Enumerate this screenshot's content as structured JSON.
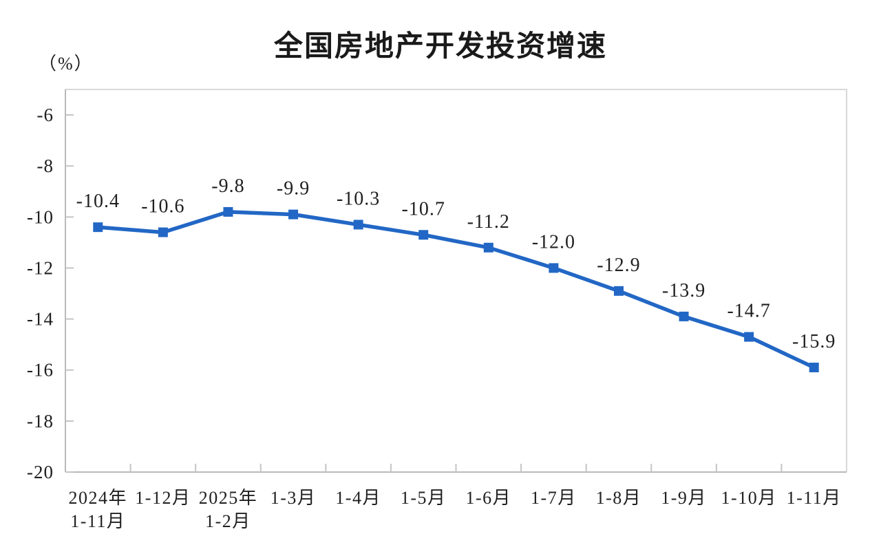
{
  "chart_data": {
    "type": "line",
    "title": "全国房地产开发投资增速",
    "unit_label": "（%）",
    "categories": [
      [
        "2024年",
        "1-11月"
      ],
      [
        "1-12月"
      ],
      [
        "2025年",
        "1-2月"
      ],
      [
        "1-3月"
      ],
      [
        "1-4月"
      ],
      [
        "1-5月"
      ],
      [
        "1-6月"
      ],
      [
        "1-7月"
      ],
      [
        "1-8月"
      ],
      [
        "1-9月"
      ],
      [
        "1-10月"
      ],
      [
        "1-11月"
      ]
    ],
    "values": [
      -10.4,
      -10.6,
      -9.8,
      -9.9,
      -10.3,
      -10.7,
      -11.2,
      -12.0,
      -12.9,
      -13.9,
      -14.7,
      -15.9
    ],
    "labels": [
      "-10.4",
      "-10.6",
      "-9.8",
      "-9.9",
      "-10.3",
      "-10.7",
      "-11.2",
      "-12.0",
      "-12.9",
      "-13.9",
      "-14.7",
      "-15.9"
    ],
    "xlabel": "",
    "ylabel": "（%）",
    "ylim": [
      -20,
      -5
    ],
    "yticks": [
      -6,
      -8,
      -10,
      -12,
      -14,
      -16,
      -18,
      -20
    ],
    "grid": false,
    "legend": "none",
    "colors": {
      "line": "#2267C5",
      "marker": "#2267C5",
      "axis": "#B9B9B9",
      "border": "#D8D8D8",
      "tick": "#C4C4C4",
      "text": "#1F1F1F",
      "title": "#1A1A1A"
    }
  }
}
